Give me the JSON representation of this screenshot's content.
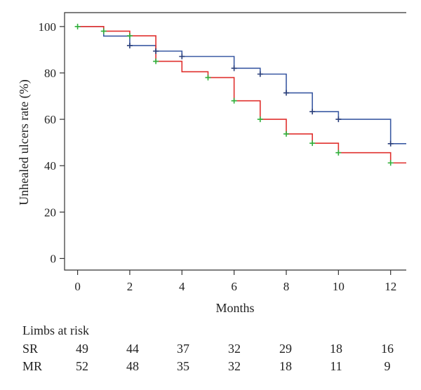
{
  "chart_data": {
    "type": "line",
    "xlabel": "Months",
    "ylabel": "Unhealed ulcers rate (%)",
    "xlim": [
      -0.5,
      12.6
    ],
    "ylim": [
      -5,
      106
    ],
    "xticks": [
      0,
      2,
      4,
      6,
      8,
      10,
      12
    ],
    "yticks": [
      0,
      20,
      40,
      60,
      80,
      100
    ],
    "grid": false,
    "series": [
      {
        "name": "SR",
        "color": "#3b5aa3",
        "censor_color": "#2a3f7a",
        "steps": [
          [
            0,
            100
          ],
          [
            1,
            95.9
          ],
          [
            2,
            91.8
          ],
          [
            3,
            89.4
          ],
          [
            4,
            87.1
          ],
          [
            6,
            82
          ],
          [
            7,
            79.5
          ],
          [
            8,
            71.4
          ],
          [
            9,
            63.3
          ],
          [
            10,
            60
          ],
          [
            12,
            49.5
          ],
          [
            12.6,
            49.5
          ]
        ],
        "censor": [
          [
            2,
            91.8
          ],
          [
            3,
            89.4
          ],
          [
            4,
            87.1
          ],
          [
            6,
            82
          ],
          [
            7,
            79.5
          ],
          [
            8,
            71.4
          ],
          [
            9,
            63.3
          ],
          [
            10,
            60
          ],
          [
            12,
            49.5
          ]
        ]
      },
      {
        "name": "MR",
        "color": "#e0302e",
        "censor_color": "#2fb03a",
        "steps": [
          [
            0,
            100
          ],
          [
            1,
            98
          ],
          [
            2,
            96
          ],
          [
            3,
            85
          ],
          [
            4,
            80.5
          ],
          [
            5,
            78
          ],
          [
            6,
            68
          ],
          [
            7,
            60
          ],
          [
            8,
            53.7
          ],
          [
            9,
            49.7
          ],
          [
            10,
            45.6
          ],
          [
            12,
            41.2
          ],
          [
            12.6,
            41.2
          ]
        ],
        "censor": [
          [
            0,
            100
          ],
          [
            1,
            98
          ],
          [
            2,
            96
          ],
          [
            3,
            85
          ],
          [
            5,
            78
          ],
          [
            6,
            68
          ],
          [
            7,
            60
          ],
          [
            8,
            53.7
          ],
          [
            9,
            49.7
          ],
          [
            10,
            45.6
          ],
          [
            12,
            41.2
          ]
        ]
      }
    ]
  },
  "risk_table": {
    "title": "Limbs at risk",
    "rows": [
      {
        "label": "SR",
        "values": [
          "49",
          "44",
          "37",
          "32",
          "29",
          "18",
          "16"
        ]
      },
      {
        "label": "MR",
        "values": [
          "52",
          "48",
          "35",
          "32",
          "18",
          "11",
          "9"
        ]
      }
    ]
  }
}
